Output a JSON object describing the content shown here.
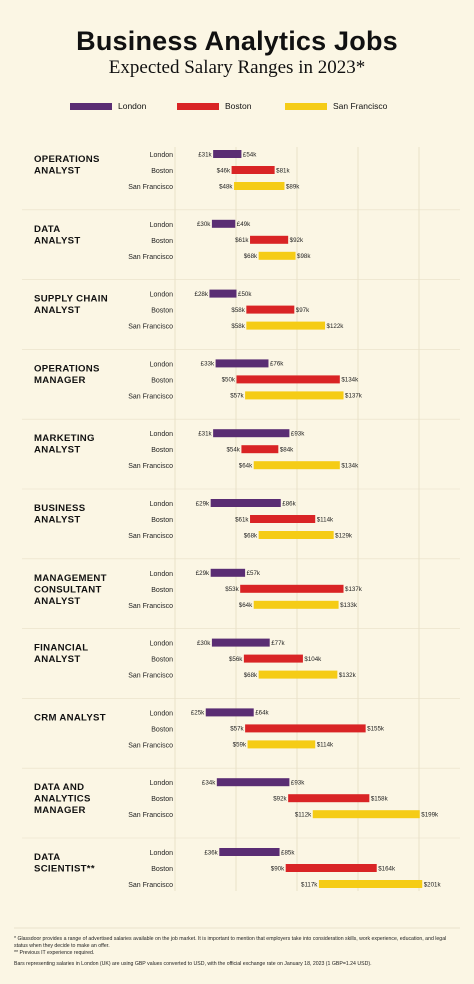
{
  "title": "Business Analytics Jobs",
  "subtitle": "Expected Salary Ranges in 2023*",
  "colors": {
    "London": "#5a2d73",
    "Boston": "#d92425",
    "San Francisco": "#f5cc16"
  },
  "chart_data": {
    "type": "bar",
    "subtype": "floating-range",
    "xlim": [
      0,
      250
    ],
    "x_unit": "thousand USD",
    "legend": [
      "London",
      "Boston",
      "San Francisco"
    ],
    "legend_position": "top",
    "grid": true,
    "groups": [
      {
        "name": "OPERATIONS ANALYST",
        "lines": [
          "OPERATIONS",
          "ANALYST"
        ],
        "rows": [
          {
            "city": "London",
            "min": 31,
            "max": 54,
            "min_label": "£31k",
            "max_label": "£54k"
          },
          {
            "city": "Boston",
            "min": 46,
            "max": 81,
            "min_label": "$46k",
            "max_label": "$81k"
          },
          {
            "city": "San Francisco",
            "min": 48,
            "max": 89,
            "min_label": "$48k",
            "max_label": "$89k"
          }
        ]
      },
      {
        "name": "DATA ANALYST",
        "lines": [
          "DATA",
          "ANALYST"
        ],
        "rows": [
          {
            "city": "London",
            "min": 30,
            "max": 49,
            "min_label": "£30k",
            "max_label": "£49k"
          },
          {
            "city": "Boston",
            "min": 61,
            "max": 92,
            "min_label": "$61k",
            "max_label": "$92k"
          },
          {
            "city": "San Francisco",
            "min": 68,
            "max": 98,
            "min_label": "$68k",
            "max_label": "$98k"
          }
        ]
      },
      {
        "name": "SUPPLY CHAIN ANALYST",
        "lines": [
          "SUPPLY CHAIN",
          "ANALYST"
        ],
        "rows": [
          {
            "city": "London",
            "min": 28,
            "max": 50,
            "min_label": "£28k",
            "max_label": "£50k"
          },
          {
            "city": "Boston",
            "min": 58,
            "max": 97,
            "min_label": "$58k",
            "max_label": "$97k"
          },
          {
            "city": "San Francisco",
            "min": 58,
            "max": 122,
            "min_label": "$58k",
            "max_label": "$122k"
          }
        ]
      },
      {
        "name": "OPERATIONS MANAGER",
        "lines": [
          "OPERATIONS",
          "MANAGER"
        ],
        "rows": [
          {
            "city": "London",
            "min": 33,
            "max": 76,
            "min_label": "£33k",
            "max_label": "£76k"
          },
          {
            "city": "Boston",
            "min": 50,
            "max": 134,
            "min_label": "$50k",
            "max_label": "$134k"
          },
          {
            "city": "San Francisco",
            "min": 57,
            "max": 137,
            "min_label": "$57k",
            "max_label": "$137k"
          }
        ]
      },
      {
        "name": "MARKETING ANALYST",
        "lines": [
          "MARKETING",
          "ANALYST"
        ],
        "rows": [
          {
            "city": "London",
            "min": 31,
            "max": 93,
            "min_label": "£31k",
            "max_label": "£93k"
          },
          {
            "city": "Boston",
            "min": 54,
            "max": 84,
            "min_label": "$54k",
            "max_label": "$84k"
          },
          {
            "city": "San Francisco",
            "min": 64,
            "max": 134,
            "min_label": "$64k",
            "max_label": "$134k"
          }
        ]
      },
      {
        "name": "BUSINESS ANALYST",
        "lines": [
          "BUSINESS",
          "ANALYST"
        ],
        "rows": [
          {
            "city": "London",
            "min": 29,
            "max": 86,
            "min_label": "£29k",
            "max_label": "£86k"
          },
          {
            "city": "Boston",
            "min": 61,
            "max": 114,
            "min_label": "$61k",
            "max_label": "$114k"
          },
          {
            "city": "San Francisco",
            "min": 68,
            "max": 129,
            "min_label": "$68k",
            "max_label": "$129k"
          }
        ]
      },
      {
        "name": "MANAGEMENT CONSULTANT ANALYST",
        "lines": [
          "MANAGEMENT",
          "CONSULTANT",
          "ANALYST"
        ],
        "rows": [
          {
            "city": "London",
            "min": 29,
            "max": 57,
            "min_label": "£29k",
            "max_label": "£57k"
          },
          {
            "city": "Boston",
            "min": 53,
            "max": 137,
            "min_label": "$53k",
            "max_label": "$137k"
          },
          {
            "city": "San Francisco",
            "min": 64,
            "max": 133,
            "min_label": "$64k",
            "max_label": "$133k"
          }
        ]
      },
      {
        "name": "FINANCIAL ANALYST",
        "lines": [
          "FINANCIAL",
          "ANALYST"
        ],
        "rows": [
          {
            "city": "London",
            "min": 30,
            "max": 77,
            "min_label": "£30k",
            "max_label": "£77k"
          },
          {
            "city": "Boston",
            "min": 56,
            "max": 104,
            "min_label": "$56k",
            "max_label": "$104k"
          },
          {
            "city": "San Francisco",
            "min": 68,
            "max": 132,
            "min_label": "$68k",
            "max_label": "$132k"
          }
        ]
      },
      {
        "name": "CRM ANALYST",
        "lines": [
          "CRM ANALYST"
        ],
        "rows": [
          {
            "city": "London",
            "min": 25,
            "max": 64,
            "min_label": "£25k",
            "max_label": "£64k"
          },
          {
            "city": "Boston",
            "min": 57,
            "max": 155,
            "min_label": "$57k",
            "max_label": "$155k"
          },
          {
            "city": "San Francisco",
            "min": 59,
            "max": 114,
            "min_label": "$59k",
            "max_label": "$114k"
          }
        ]
      },
      {
        "name": "DATA AND ANALYTICS MANAGER",
        "lines": [
          "DATA AND",
          "ANALYTICS",
          "MANAGER"
        ],
        "rows": [
          {
            "city": "London",
            "min": 34,
            "max": 93,
            "min_label": "£34k",
            "max_label": "£93k"
          },
          {
            "city": "Boston",
            "min": 92,
            "max": 158,
            "min_label": "$92k",
            "max_label": "$158k"
          },
          {
            "city": "San Francisco",
            "min": 112,
            "max": 199,
            "min_label": "$112k",
            "max_label": "$199k"
          }
        ]
      },
      {
        "name": "DATA SCIENTIST**",
        "lines": [
          "DATA",
          "SCIENTIST**"
        ],
        "rows": [
          {
            "city": "London",
            "min": 36,
            "max": 85,
            "min_label": "£36k",
            "max_label": "£85k"
          },
          {
            "city": "Boston",
            "min": 90,
            "max": 164,
            "min_label": "$90k",
            "max_label": "$164k"
          },
          {
            "city": "San Francisco",
            "min": 117,
            "max": 201,
            "min_label": "$117k",
            "max_label": "$201k"
          }
        ]
      }
    ]
  },
  "footnotes": {
    "line1": "* Glassdoor provides a range of advertised salaries available on the job market. It is important to mention that employers take into consideration skills, work experience, education, and legal status when they decide to make an offer.",
    "line2": "** Previous IT experience required.",
    "line3": "Bars representing salaries in London (UK) are using GBP values converted to USD, with the official exchange rate on January 18, 2023 (1 GBP=1.24 USD)."
  }
}
